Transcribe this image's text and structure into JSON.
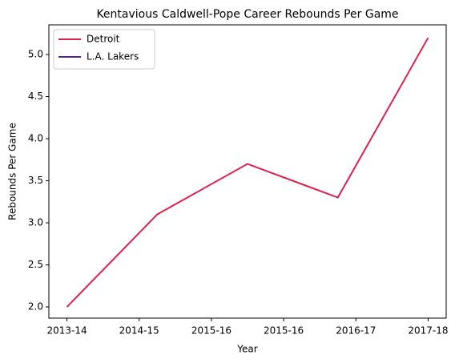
{
  "chart_data": {
    "type": "line",
    "title": "Kentavious Caldwell-Pope Career Rebounds Per Game",
    "x_label": "Year",
    "y_label": "Rebounds Per Game",
    "x": [
      0,
      1,
      2,
      3,
      4
    ],
    "series": [
      {
        "name": "Detroit",
        "color": "#e0204f",
        "values": [
          2.0,
          3.1,
          3.7,
          3.3,
          5.2
        ]
      },
      {
        "name": "L.A. Lakers",
        "color": "#552583",
        "values": [
          null,
          null,
          null,
          null,
          null
        ]
      }
    ],
    "xlim": [
      -0.2,
      4.2
    ],
    "xticks": [
      {
        "value": 0,
        "label": "2013-14"
      },
      {
        "value": 0.8,
        "label": "2014-15"
      },
      {
        "value": 1.6,
        "label": "2015-16"
      },
      {
        "value": 2.4,
        "label": "2015-16"
      },
      {
        "value": 3.2,
        "label": "2016-17"
      },
      {
        "value": 4,
        "label": "2017-18"
      }
    ],
    "ylim": [
      1.867,
      5.353
    ],
    "yticks": [
      {
        "value": 2,
        "label": "2.0"
      },
      2.5,
      {
        "value": 3,
        "label": "3.0"
      },
      3.5,
      {
        "value": 4,
        "label": "4.0"
      },
      4.5,
      {
        "value": 5,
        "label": "5.0"
      }
    ],
    "legend": "upper left",
    "grid": false
  }
}
